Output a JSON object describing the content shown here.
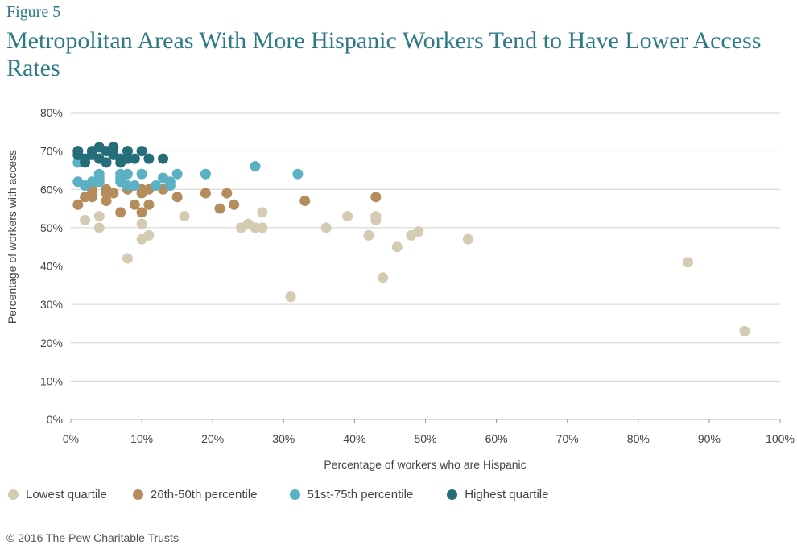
{
  "figure_label": "Figure 5",
  "title": "Metropolitan Areas With More Hispanic Workers Tend to Have Lower Access Rates",
  "footer": "© 2016 The Pew Charitable Trusts",
  "chart_data": {
    "type": "scatter",
    "xlabel": "Percentage of workers who are Hispanic",
    "ylabel": "Percentage of workers with access",
    "xlim": [
      0,
      100
    ],
    "ylim": [
      0,
      80
    ],
    "x_ticks": [
      "0%",
      "10%",
      "20%",
      "30%",
      "40%",
      "50%",
      "60%",
      "70%",
      "80%",
      "90%",
      "100%"
    ],
    "y_ticks": [
      "0%",
      "10%",
      "20%",
      "30%",
      "40%",
      "50%",
      "60%",
      "70%",
      "80%"
    ],
    "grid": "horizontal",
    "legend_position": "bottom",
    "series": [
      {
        "name": "Lowest quartile",
        "color": "#d3cbb2",
        "points": [
          [
            2,
            52
          ],
          [
            4,
            53
          ],
          [
            4,
            50
          ],
          [
            8,
            42
          ],
          [
            10,
            51
          ],
          [
            10,
            47
          ],
          [
            11,
            48
          ],
          [
            16,
            53
          ],
          [
            24,
            50
          ],
          [
            25,
            51
          ],
          [
            26,
            50
          ],
          [
            27,
            54
          ],
          [
            27,
            50
          ],
          [
            31,
            32
          ],
          [
            36,
            50
          ],
          [
            39,
            53
          ],
          [
            42,
            48
          ],
          [
            43,
            53
          ],
          [
            43,
            52
          ],
          [
            44,
            37
          ],
          [
            46,
            45
          ],
          [
            48,
            48
          ],
          [
            49,
            49
          ],
          [
            56,
            47
          ],
          [
            87,
            41
          ],
          [
            95,
            23
          ]
        ]
      },
      {
        "name": "26th-50th percentile",
        "color": "#b58d5d",
        "points": [
          [
            1,
            56
          ],
          [
            2,
            58
          ],
          [
            3,
            58
          ],
          [
            3,
            59
          ],
          [
            3,
            60
          ],
          [
            5,
            57
          ],
          [
            5,
            59
          ],
          [
            5,
            60
          ],
          [
            6,
            59
          ],
          [
            7,
            54
          ],
          [
            8,
            60
          ],
          [
            9,
            56
          ],
          [
            10,
            54
          ],
          [
            10,
            59
          ],
          [
            10,
            60
          ],
          [
            11,
            56
          ],
          [
            11,
            60
          ],
          [
            13,
            60
          ],
          [
            15,
            58
          ],
          [
            19,
            59
          ],
          [
            21,
            55
          ],
          [
            22,
            59
          ],
          [
            23,
            56
          ],
          [
            33,
            57
          ],
          [
            43,
            58
          ]
        ]
      },
      {
        "name": "51st-75th percentile",
        "color": "#5ab1c3",
        "points": [
          [
            1,
            62
          ],
          [
            1,
            67
          ],
          [
            2,
            61
          ],
          [
            3,
            62
          ],
          [
            4,
            62
          ],
          [
            4,
            63
          ],
          [
            4,
            64
          ],
          [
            7,
            62
          ],
          [
            7,
            63
          ],
          [
            7,
            64
          ],
          [
            8,
            61
          ],
          [
            8,
            64
          ],
          [
            9,
            61
          ],
          [
            10,
            64
          ],
          [
            12,
            61
          ],
          [
            13,
            63
          ],
          [
            14,
            61
          ],
          [
            14,
            62
          ],
          [
            15,
            64
          ],
          [
            19,
            64
          ],
          [
            26,
            66
          ],
          [
            32,
            64
          ]
        ]
      },
      {
        "name": "Highest quartile",
        "color": "#256d79",
        "points": [
          [
            1,
            70
          ],
          [
            1,
            69
          ],
          [
            2,
            67
          ],
          [
            2,
            68
          ],
          [
            3,
            70
          ],
          [
            3,
            69
          ],
          [
            4,
            71
          ],
          [
            4,
            68
          ],
          [
            5,
            70
          ],
          [
            5,
            67
          ],
          [
            6,
            71
          ],
          [
            6,
            69
          ],
          [
            7,
            68
          ],
          [
            7,
            67
          ],
          [
            8,
            70
          ],
          [
            8,
            68
          ],
          [
            9,
            68
          ],
          [
            10,
            70
          ],
          [
            11,
            68
          ],
          [
            13,
            68
          ]
        ]
      }
    ]
  }
}
